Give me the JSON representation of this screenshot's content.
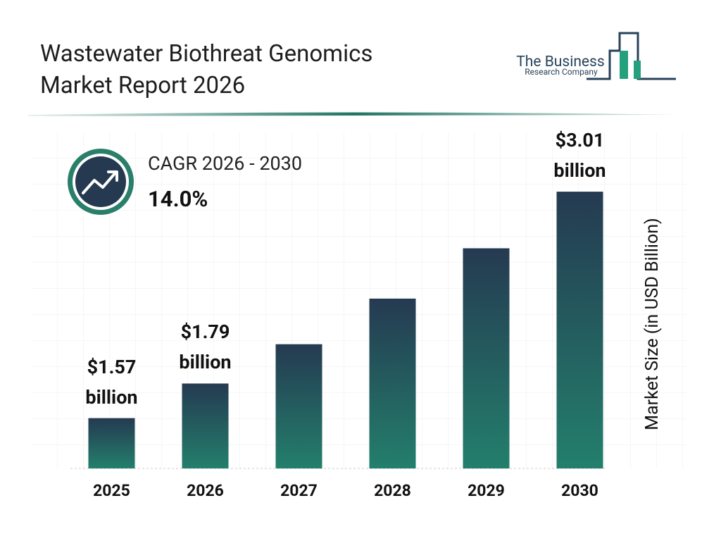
{
  "chart_data": {
    "type": "bar",
    "title": "Wastewater Biothreat Genomics Market Report 2026",
    "logo": {
      "line1": "The Business",
      "line2": "Research Company"
    },
    "cagr_label": "CAGR 2026 - 2030",
    "cagr_value": "14.0%",
    "y_label": "Market Size (in USD Billion)",
    "categories": [
      "2025",
      "2026",
      "2027",
      "2028",
      "2029",
      "2030"
    ],
    "values": [
      1.57,
      1.79,
      2.04,
      2.33,
      2.65,
      3.01
    ],
    "value_labels": [
      "$1.57 billion",
      "$1.79 billion",
      null,
      null,
      null,
      "$3.01 billion"
    ],
    "colors": [
      "#253a51",
      "#237f6c"
    ],
    "ylim": [
      1.25,
      3.1
    ]
  }
}
